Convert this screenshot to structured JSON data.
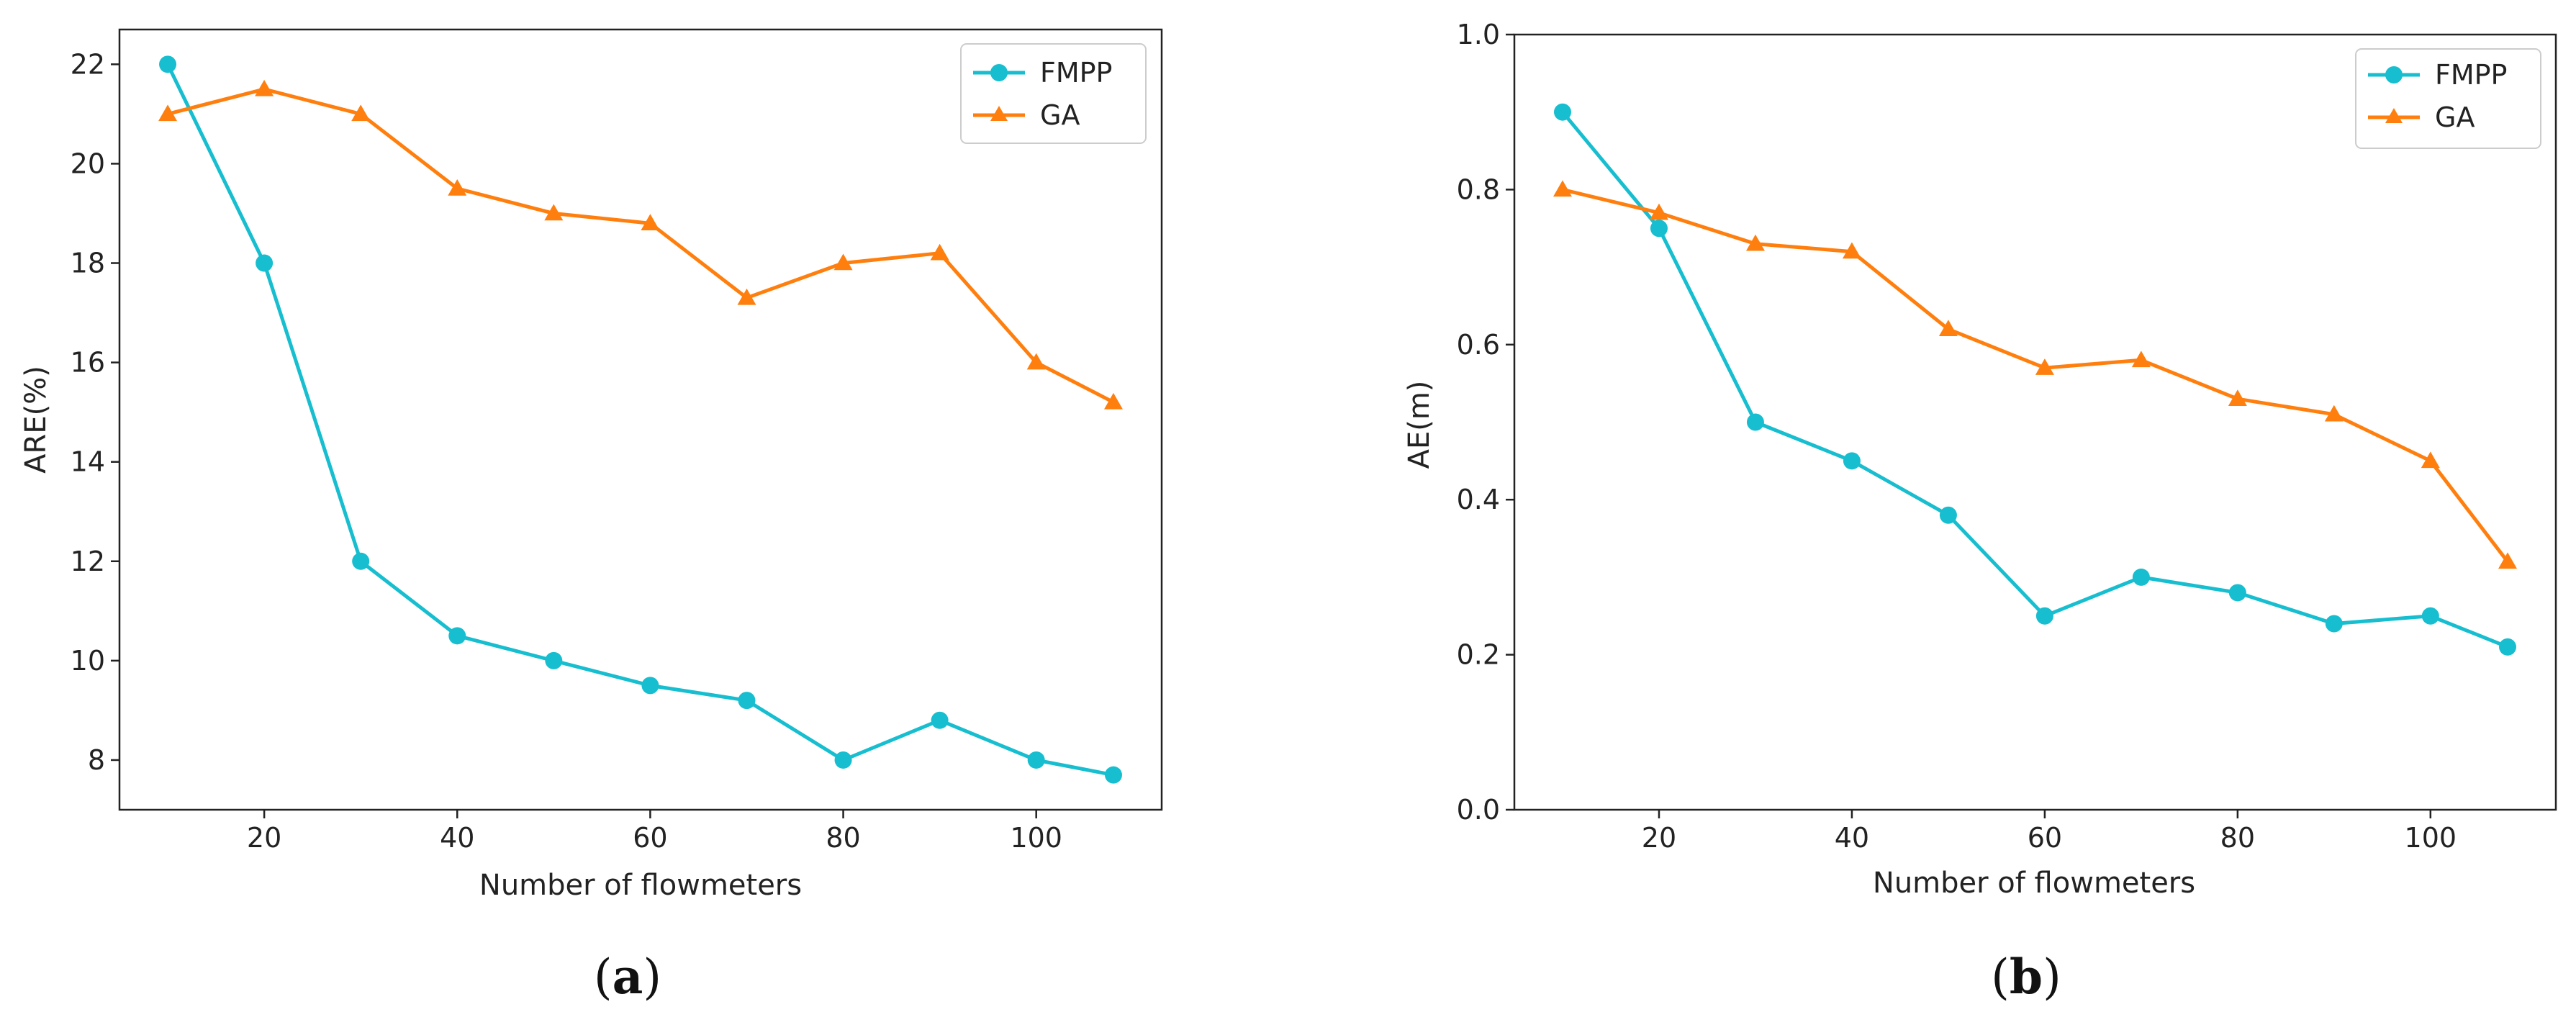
{
  "chart_data": [
    {
      "type": "line",
      "panel_label": "a",
      "title": "",
      "xlabel": "Number of flowmeters",
      "ylabel": "ARE(%)",
      "x": [
        10,
        20,
        30,
        40,
        50,
        60,
        70,
        80,
        90,
        100,
        108
      ],
      "xlim": [
        5,
        113
      ],
      "ylim": [
        7,
        22.7
      ],
      "xticks": [
        20,
        40,
        60,
        80,
        100
      ],
      "yticks": [
        8,
        10,
        12,
        14,
        16,
        18,
        20,
        22
      ],
      "xtick_labels": [
        "20",
        "40",
        "60",
        "80",
        "100"
      ],
      "ytick_labels": [
        "8",
        "10",
        "12",
        "14",
        "16",
        "18",
        "20",
        "22"
      ],
      "legend_position": "top-right",
      "series": [
        {
          "name": "FMPP",
          "marker": "circle",
          "color": "#17becf",
          "values": [
            22.0,
            18.0,
            12.0,
            10.5,
            10.0,
            9.5,
            9.2,
            8.0,
            8.8,
            8.0,
            7.7
          ]
        },
        {
          "name": "GA",
          "marker": "triangle",
          "color": "#ff7f0e",
          "values": [
            21.0,
            21.5,
            21.0,
            19.5,
            19.0,
            18.8,
            17.3,
            18.0,
            18.2,
            16.0,
            15.2
          ]
        }
      ]
    },
    {
      "type": "line",
      "panel_label": "b",
      "title": "",
      "xlabel": "Number of flowmeters",
      "ylabel": "AE(m)",
      "x": [
        10,
        20,
        30,
        40,
        50,
        60,
        70,
        80,
        90,
        100,
        108
      ],
      "xlim": [
        5,
        113
      ],
      "ylim": [
        0,
        1.0
      ],
      "xticks": [
        20,
        40,
        60,
        80,
        100
      ],
      "yticks": [
        0.0,
        0.2,
        0.4,
        0.6,
        0.8,
        1.0
      ],
      "xtick_labels": [
        "20",
        "40",
        "60",
        "80",
        "100"
      ],
      "ytick_labels": [
        "0.0",
        "0.2",
        "0.4",
        "0.6",
        "0.8",
        "1.0"
      ],
      "legend_position": "top-right",
      "series": [
        {
          "name": "FMPP",
          "marker": "circle",
          "color": "#17becf",
          "values": [
            0.9,
            0.75,
            0.5,
            0.45,
            0.38,
            0.25,
            0.3,
            0.28,
            0.24,
            0.25,
            0.21
          ]
        },
        {
          "name": "GA",
          "marker": "triangle",
          "color": "#ff7f0e",
          "values": [
            0.8,
            0.77,
            0.73,
            0.72,
            0.62,
            0.57,
            0.58,
            0.53,
            0.51,
            0.45,
            0.32
          ]
        }
      ]
    }
  ]
}
